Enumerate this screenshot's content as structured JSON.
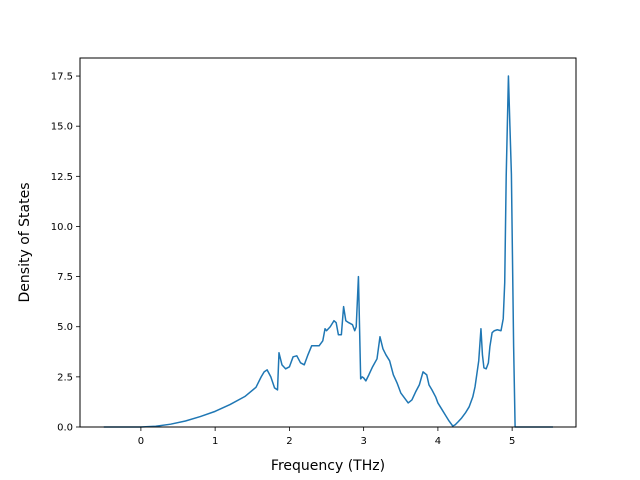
{
  "chart_data": {
    "type": "line",
    "title": "",
    "xlabel": "Frequency (THz)",
    "ylabel": "Density of States",
    "xlim": [
      -0.82,
      5.86
    ],
    "ylim": [
      0,
      18.4
    ],
    "xticks": [
      0,
      1,
      2,
      3,
      4,
      5
    ],
    "xtick_labels": [
      "0",
      "1",
      "2",
      "3",
      "4",
      "5"
    ],
    "yticks": [
      0.0,
      2.5,
      5.0,
      7.5,
      10.0,
      12.5,
      15.0,
      17.5
    ],
    "ytick_labels": [
      "0.0",
      "2.5",
      "5.0",
      "7.5",
      "10.0",
      "12.5",
      "15.0",
      "17.5"
    ],
    "grid": false,
    "line_color": "#1f77b4",
    "series": [
      {
        "x": [
          -0.5,
          0.0,
          0.2,
          0.4,
          0.6,
          0.8,
          1.0,
          1.2,
          1.4,
          1.55,
          1.62,
          1.66,
          1.7,
          1.75,
          1.8,
          1.84,
          1.86,
          1.9,
          1.95,
          2.0,
          2.05,
          2.1,
          2.15,
          2.2,
          2.25,
          2.3,
          2.35,
          2.4,
          2.45,
          2.48,
          2.5,
          2.55,
          2.6,
          2.63,
          2.66,
          2.7,
          2.73,
          2.76,
          2.8,
          2.85,
          2.88,
          2.9,
          2.93,
          2.96,
          2.98,
          3.0,
          3.03,
          3.07,
          3.12,
          3.18,
          3.22,
          3.26,
          3.3,
          3.35,
          3.4,
          3.45,
          3.5,
          3.55,
          3.6,
          3.65,
          3.7,
          3.75,
          3.8,
          3.85,
          3.88,
          3.92,
          3.97,
          4.0,
          4.05,
          4.1,
          4.15,
          4.2,
          4.23,
          4.27,
          4.32,
          4.37,
          4.42,
          4.47,
          4.5,
          4.55,
          4.58,
          4.6,
          4.62,
          4.65,
          4.68,
          4.7,
          4.73,
          4.76,
          4.8,
          4.85,
          4.88,
          4.9,
          4.92,
          4.95,
          4.97,
          4.99,
          5.02,
          5.04,
          5.06,
          5.55
        ],
        "y": [
          0.0,
          0.0,
          0.04,
          0.14,
          0.3,
          0.52,
          0.78,
          1.12,
          1.52,
          1.98,
          2.5,
          2.75,
          2.85,
          2.5,
          1.95,
          1.85,
          3.7,
          3.1,
          2.9,
          3.0,
          3.5,
          3.55,
          3.2,
          3.1,
          3.6,
          4.05,
          4.05,
          4.05,
          4.3,
          4.9,
          4.8,
          5.0,
          5.3,
          5.2,
          4.6,
          4.6,
          6.0,
          5.3,
          5.2,
          5.1,
          4.8,
          5.0,
          7.5,
          2.4,
          2.5,
          2.45,
          2.3,
          2.6,
          3.0,
          3.4,
          4.5,
          3.9,
          3.6,
          3.3,
          2.6,
          2.2,
          1.7,
          1.45,
          1.2,
          1.35,
          1.75,
          2.1,
          2.75,
          2.6,
          2.1,
          1.85,
          1.5,
          1.2,
          0.9,
          0.6,
          0.3,
          0.05,
          0.1,
          0.25,
          0.45,
          0.7,
          1.0,
          1.5,
          2.0,
          3.3,
          4.9,
          3.6,
          2.95,
          2.9,
          3.2,
          4.0,
          4.7,
          4.8,
          4.85,
          4.8,
          5.4,
          7.2,
          12.5,
          17.5,
          15.0,
          12.6,
          4.0,
          0.0,
          0.0,
          0.0
        ]
      }
    ]
  }
}
